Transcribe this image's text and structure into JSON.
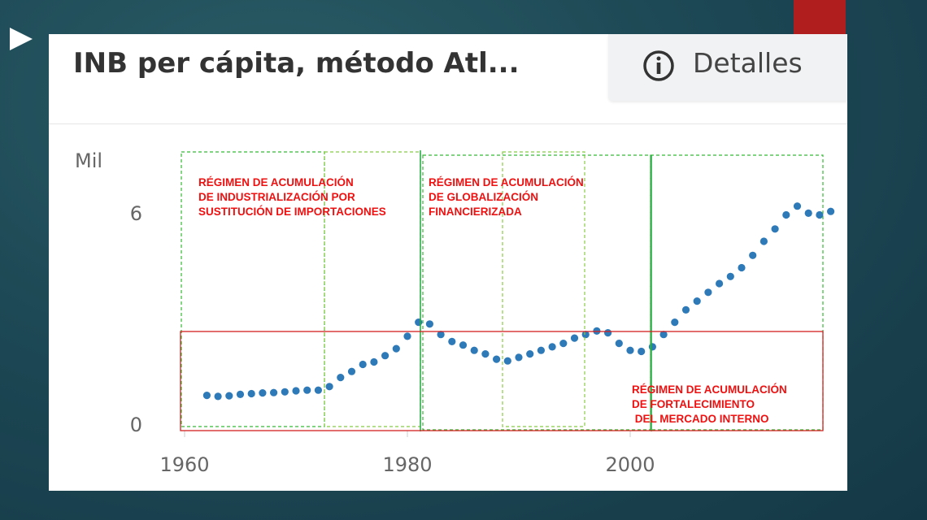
{
  "header": {
    "title": "INB per cápita, método Atl...",
    "details_label": "Detalles"
  },
  "colors": {
    "background": "#1d4855",
    "accent_tab": "#b01e1e",
    "series": "#2e7ab8",
    "regime_text": "#ee1111",
    "regime_box": "#d42020",
    "dashed_green": "#33bb33",
    "dashed_lime": "#88cc44"
  },
  "icons": {
    "slide_bullet": "triangle-arrow-icon",
    "details": "info-icon"
  },
  "chart_data": {
    "type": "scatter",
    "title": "INB per cápita, método Atl...",
    "ylabel": "Mil",
    "xlim": [
      1960,
      2018
    ],
    "ylim": [
      0,
      7
    ],
    "x_ticks": [
      "1960",
      "1980",
      "2000"
    ],
    "y_ticks": [
      "0",
      "6"
    ],
    "grid": false,
    "legend": "none",
    "series": [
      {
        "x": [
          1962,
          1963,
          1964,
          1965,
          1966,
          1967,
          1968,
          1969,
          1970,
          1971,
          1972,
          1973,
          1974,
          1975,
          1976,
          1977,
          1978,
          1979,
          1980,
          1981,
          1982,
          1983,
          1984,
          1985,
          1986,
          1987,
          1988,
          1989,
          1990,
          1991,
          1992,
          1993,
          1994,
          1995,
          1996,
          1997,
          1998,
          1999,
          2000,
          2001,
          2002,
          2003,
          2004,
          2005,
          2006,
          2007,
          2008,
          2009,
          2010,
          2011,
          2012,
          2013,
          2014,
          2015,
          2016,
          2017,
          2018
        ],
        "y": [
          0.47,
          0.44,
          0.46,
          0.5,
          0.52,
          0.54,
          0.55,
          0.57,
          0.6,
          0.62,
          0.62,
          0.72,
          0.98,
          1.15,
          1.35,
          1.42,
          1.6,
          1.8,
          2.15,
          2.55,
          2.5,
          2.2,
          2.0,
          1.9,
          1.75,
          1.65,
          1.5,
          1.45,
          1.55,
          1.65,
          1.75,
          1.85,
          1.95,
          2.1,
          2.2,
          2.3,
          2.25,
          1.95,
          1.75,
          1.72,
          1.85,
          2.2,
          2.55,
          2.9,
          3.15,
          3.4,
          3.65,
          3.85,
          4.1,
          4.45,
          4.85,
          5.2,
          5.6,
          5.85,
          5.65,
          5.6,
          5.7
        ]
      }
    ],
    "annotations": [
      "RÉGIMEN DE ACUMULACIÓN\nDE INDUSTRIALIZACIÓN POR\nSUSTITUCIÓN DE IMPORTACIONES",
      "RÉGIMEN DE ACUMULACIÓN\nDE GLOBALIZACIÓN\nFINANCIERIZADA",
      "RÉGIMEN DE ACUMULACIÓN\nDE FORTALECIMIENTO\n DEL MERCADO INTERNO"
    ]
  }
}
